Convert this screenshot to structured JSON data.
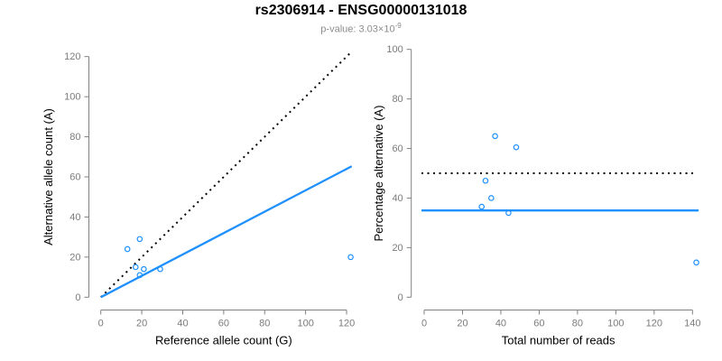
{
  "header": {
    "title": "rs2306914 - ENSG00000131018",
    "pvalue_label": "p-value: ",
    "pvalue_value": "3.03×10",
    "pvalue_exponent": "-9"
  },
  "colors": {
    "accent_blue": "#1E90FF",
    "line_black": "#000000",
    "axis_gray": "#808080",
    "tick_label_gray": "#7b7b7b",
    "axis_title_black": "#000000",
    "subtitle_gray": "#8c8c8c",
    "background": "#ffffff"
  },
  "chart_data": [
    {
      "id": "left",
      "type": "scatter",
      "title": "",
      "xlabel": "Reference allele count (G)",
      "ylabel": "Alternative allele count (A)",
      "xlim": [
        0,
        123
      ],
      "ylim": [
        0,
        123
      ],
      "xticks": [
        0,
        20,
        40,
        60,
        80,
        100,
        120
      ],
      "yticks": [
        0,
        20,
        40,
        60,
        80,
        100,
        120
      ],
      "grid": false,
      "legend": "none",
      "marker": "open-circle",
      "points": [
        [
          13,
          24
        ],
        [
          19,
          29
        ],
        [
          17,
          15
        ],
        [
          21,
          14
        ],
        [
          19,
          11
        ],
        [
          29,
          14
        ],
        [
          122,
          20
        ]
      ],
      "lines": [
        {
          "name": "identity-line",
          "style": "dotted",
          "color": "#000000",
          "x1": 0,
          "y1": 0,
          "x2": 122.5,
          "y2": 122.5
        },
        {
          "name": "fit-line",
          "style": "solid",
          "color": "#1E90FF",
          "x1": 0,
          "y1": 0,
          "x2": 122.5,
          "y2": 65.3
        }
      ]
    },
    {
      "id": "right",
      "type": "scatter",
      "title": "",
      "xlabel": "Total number of reads",
      "ylabel": "Percentage alternative (A)",
      "xlim": [
        0,
        147
      ],
      "ylim": [
        0,
        100
      ],
      "xticks": [
        0,
        20,
        40,
        60,
        80,
        100,
        120,
        140
      ],
      "yticks": [
        0,
        20,
        40,
        60,
        80,
        100
      ],
      "grid": false,
      "legend": "none",
      "marker": "open-circle",
      "points": [
        [
          37,
          65
        ],
        [
          48,
          60.5
        ],
        [
          32,
          47
        ],
        [
          35,
          40
        ],
        [
          30,
          36.5
        ],
        [
          44,
          34
        ],
        [
          142,
          14
        ]
      ],
      "lines": [
        {
          "name": "fifty-percent-line",
          "style": "dotted",
          "color": "#000000",
          "x1": -1.4,
          "y1": 50,
          "x2": 140.8,
          "y2": 50
        },
        {
          "name": "mean-percentage-line",
          "style": "solid",
          "color": "#1E90FF",
          "x1": -1.4,
          "y1": 35,
          "x2": 143.2,
          "y2": 35
        }
      ]
    }
  ]
}
